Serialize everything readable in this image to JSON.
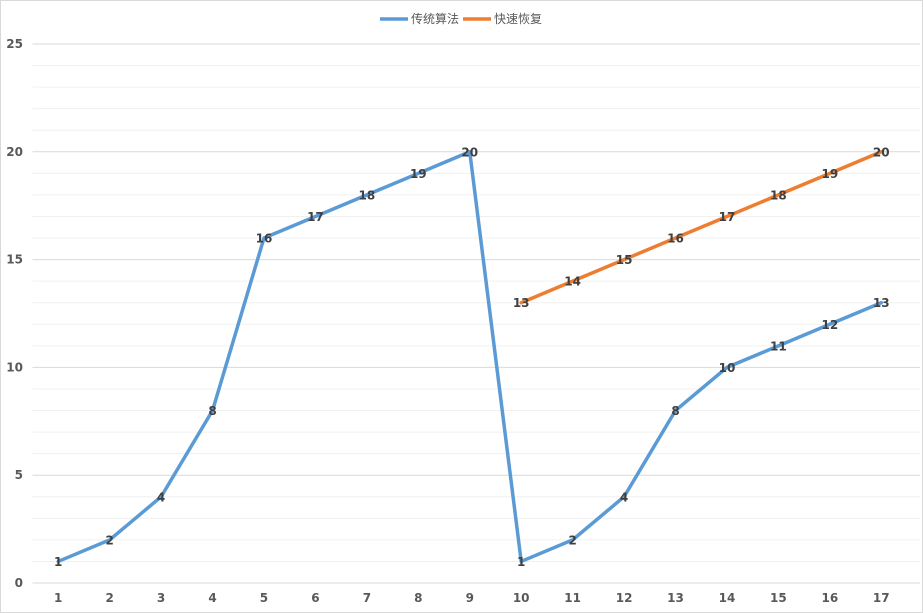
{
  "chart_data": {
    "type": "line",
    "title": "",
    "xlabel": "",
    "ylabel": "",
    "categories": [
      "1",
      "2",
      "3",
      "4",
      "5",
      "6",
      "7",
      "8",
      "9",
      "10",
      "11",
      "12",
      "13",
      "14",
      "15",
      "16",
      "17"
    ],
    "ylim": [
      0,
      25
    ],
    "yticks": [
      0,
      5,
      10,
      15,
      20,
      25
    ],
    "grid": {
      "major": true,
      "minor": true
    },
    "legend_position": "top",
    "data_labels": true,
    "series": [
      {
        "name": "传统算法",
        "color": "#5b9bd5",
        "values": [
          1,
          2,
          4,
          8,
          16,
          17,
          18,
          19,
          20,
          1,
          2,
          4,
          8,
          10,
          11,
          12,
          13
        ]
      },
      {
        "name": "快速恢复",
        "color": "#ed7d31",
        "values": [
          null,
          null,
          null,
          null,
          null,
          null,
          null,
          null,
          null,
          13,
          14,
          15,
          16,
          17,
          18,
          19,
          20
        ]
      }
    ]
  }
}
